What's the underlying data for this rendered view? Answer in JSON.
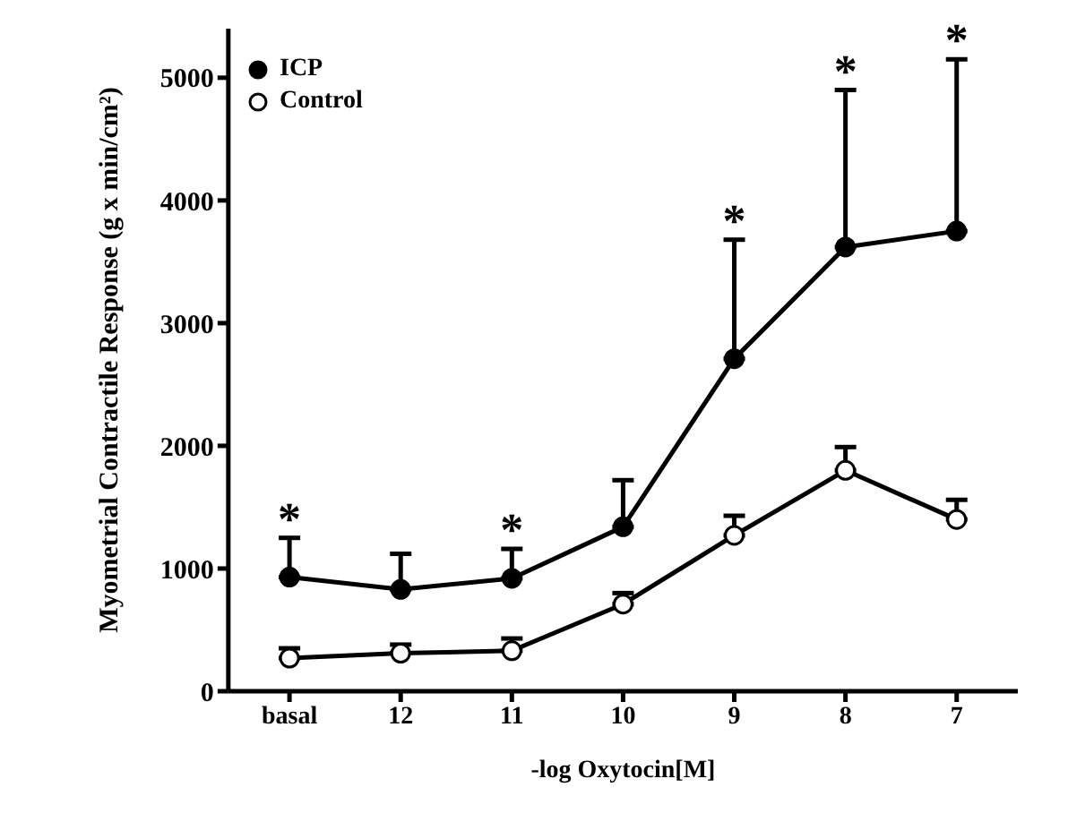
{
  "chart_data": {
    "type": "line",
    "xlabel": "-log Oxytocin[M]",
    "ylabel": "Myometrial Contractile Response (g x min/cm²)",
    "categories": [
      "basal",
      "12",
      "11",
      "10",
      "9",
      "8",
      "7"
    ],
    "series": [
      {
        "name": "ICP",
        "color": "#000000",
        "values": [
          930,
          830,
          920,
          1340,
          2710,
          3620,
          3750
        ],
        "errors": [
          [
            930,
            1250
          ],
          [
            830,
            1120
          ],
          [
            920,
            1160
          ],
          [
            1340,
            1720
          ],
          [
            2710,
            3680
          ],
          [
            3620,
            4900
          ],
          [
            3750,
            5150
          ]
        ]
      },
      {
        "name": "Control",
        "color": "#000000",
        "values": [
          270,
          310,
          330,
          710,
          1270,
          1800,
          1400
        ],
        "errors": [
          [
            270,
            350
          ],
          [
            310,
            380
          ],
          [
            330,
            430
          ],
          [
            710,
            800
          ],
          [
            1270,
            1430
          ],
          [
            1800,
            1990
          ],
          [
            1400,
            1560
          ]
        ]
      }
    ],
    "annotations": [
      {
        "text": "*",
        "x": "basal",
        "y": 1250
      },
      {
        "text": "*",
        "x": "11",
        "y": 1160
      },
      {
        "text": "*",
        "x": "9",
        "y": 3680
      },
      {
        "text": "*",
        "x": "8",
        "y": 4900
      },
      {
        "text": "*",
        "x": "7",
        "y": 5150
      }
    ],
    "ylim": [
      0,
      5400
    ],
    "yticks": [
      0,
      1000,
      2000,
      3000,
      4000,
      5000
    ],
    "grid": false,
    "legend": "top left",
    "marker": "circle",
    "line_style": "solid"
  }
}
